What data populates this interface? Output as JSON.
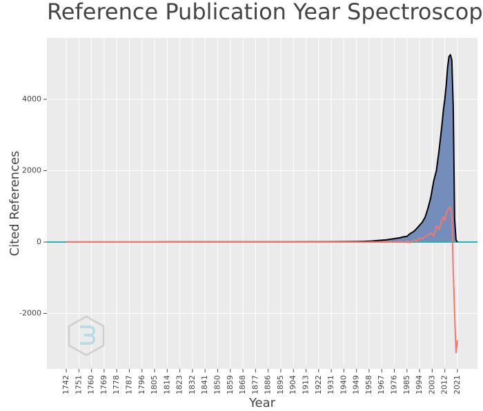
{
  "chart_data": {
    "type": "area",
    "title": "Reference Publication Year Spectroscopy",
    "x_label": "Year",
    "y_label": "Cited References",
    "x": [
      1742,
      1800,
      1850,
      1900,
      1930,
      1940,
      1950,
      1955,
      1960,
      1965,
      1970,
      1975,
      1980,
      1983,
      1985,
      1987,
      1990,
      1992,
      1994,
      1996,
      1998,
      2000,
      2002,
      2004,
      2006,
      2008,
      2010,
      2011,
      2012,
      2013,
      2014,
      2015,
      2016,
      2017,
      2018,
      2019,
      2020,
      2021
    ],
    "series": [
      {
        "color": "#000000",
        "fill": "#6f88b8",
        "values": [
          2,
          3,
          5,
          5,
          8,
          10,
          15,
          20,
          30,
          45,
          60,
          90,
          120,
          150,
          160,
          230,
          300,
          380,
          470,
          560,
          700,
          950,
          1250,
          1700,
          2000,
          2600,
          3300,
          3700,
          4000,
          4400,
          4900,
          5200,
          5250,
          5100,
          3800,
          650,
          60,
          0
        ]
      },
      {
        "color": "#f8766d",
        "values": [
          0,
          0,
          0,
          0,
          0,
          0,
          0,
          -2,
          5,
          0,
          10,
          -5,
          20,
          -10,
          30,
          -20,
          60,
          20,
          120,
          80,
          150,
          200,
          250,
          180,
          450,
          350,
          650,
          700,
          600,
          800,
          900,
          950,
          980,
          700,
          -800,
          -2000,
          -3100,
          -2750
        ]
      }
    ],
    "zeroline_color": "#1fb5b5",
    "xlim": [
      1728.2,
      2035.3
    ],
    "ylim": [
      -3556,
      5720
    ],
    "xticks": [
      1742,
      1751,
      1760,
      1769,
      1778,
      1787,
      1796,
      1805,
      1814,
      1823,
      1832,
      1841,
      1850,
      1859,
      1868,
      1877,
      1886,
      1895,
      1904,
      1913,
      1922,
      1931,
      1940,
      1949,
      1958,
      1967,
      1976,
      1985,
      1994,
      2003,
      2012,
      2021
    ],
    "yticks": [
      -2000,
      0,
      2000,
      4000
    ],
    "grid": true
  }
}
